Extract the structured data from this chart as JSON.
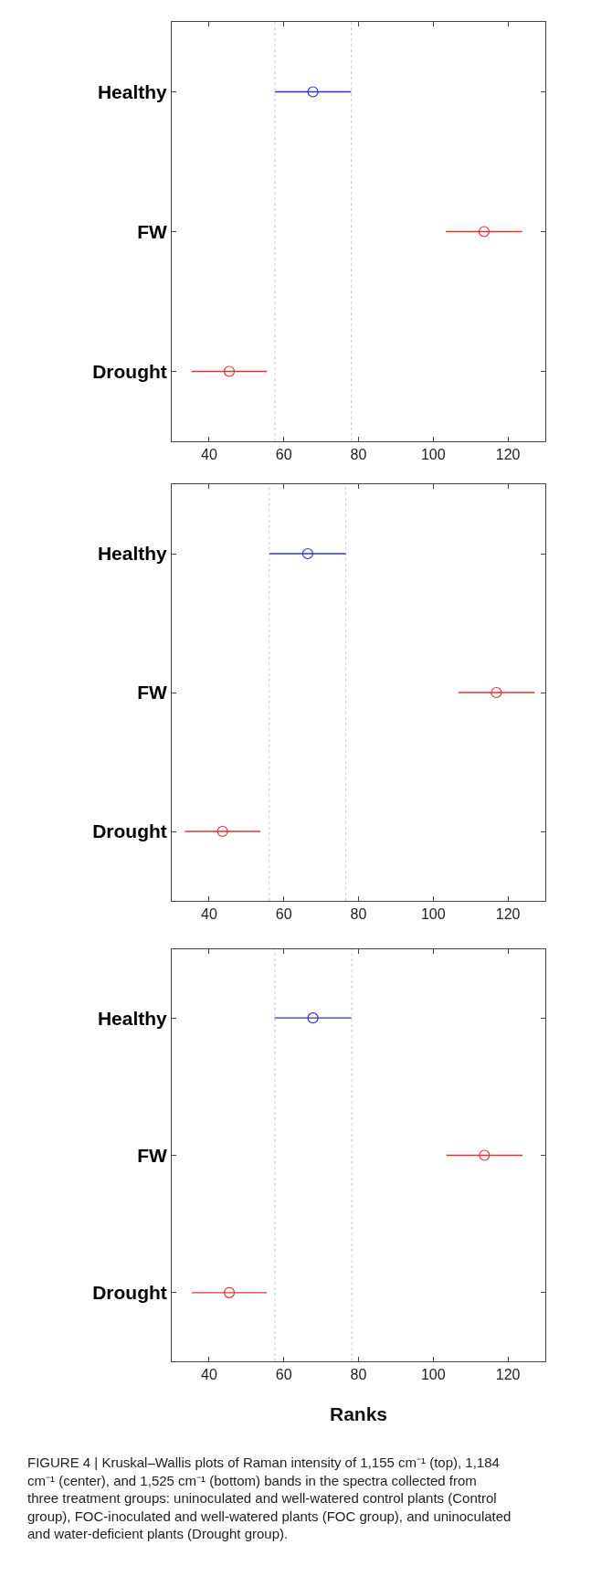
{
  "chart_data": [
    {
      "type": "scatter",
      "orientation": "horizontal",
      "categories": [
        "Healthy",
        "FW",
        "Drought"
      ],
      "marker": "circle",
      "grid": false,
      "series": [
        {
          "color": "#3333cc",
          "values": [
            67.8,
            null,
            null
          ],
          "errors": [
            10.2,
            null,
            null
          ]
        },
        {
          "color": "#dd3333",
          "values": [
            null,
            113.6,
            45.4
          ],
          "errors": [
            null,
            10.2,
            10.1
          ]
        }
      ],
      "xlim": [
        30,
        130
      ],
      "xticks": [
        40,
        60,
        80,
        100,
        120
      ],
      "ref_lines": [
        {
          "axis": "x",
          "value": 57.6,
          "color": "#cccccc",
          "line_style": "dotted"
        },
        {
          "axis": "x",
          "value": 78.1,
          "color": "#cccccc",
          "line_style": "dotted"
        }
      ]
    },
    {
      "type": "scatter",
      "orientation": "horizontal",
      "categories": [
        "Healthy",
        "FW",
        "Drought"
      ],
      "marker": "circle",
      "grid": false,
      "series": [
        {
          "color": "#3333cc",
          "values": [
            66.4,
            null,
            null
          ],
          "errors": [
            10.2,
            null,
            null
          ]
        },
        {
          "color": "#dd3333",
          "values": [
            null,
            116.9,
            43.6
          ],
          "errors": [
            null,
            10.2,
            10.1
          ]
        }
      ],
      "xlim": [
        30,
        130
      ],
      "xticks": [
        40,
        60,
        80,
        100,
        120
      ],
      "ref_lines": [
        {
          "axis": "x",
          "value": 56.1,
          "color": "#cccccc",
          "line_style": "dotted"
        },
        {
          "axis": "x",
          "value": 76.6,
          "color": "#cccccc",
          "line_style": "dotted"
        }
      ]
    },
    {
      "type": "scatter",
      "orientation": "horizontal",
      "categories": [
        "Healthy",
        "FW",
        "Drought"
      ],
      "marker": "circle",
      "grid": false,
      "xlabel": "Ranks",
      "series": [
        {
          "color": "#3333cc",
          "values": [
            67.8,
            null,
            null
          ],
          "errors": [
            10.3,
            null,
            null
          ]
        },
        {
          "color": "#dd3333",
          "values": [
            null,
            113.7,
            45.4
          ],
          "errors": [
            null,
            10.2,
            10.0
          ]
        }
      ],
      "xlim": [
        30,
        130
      ],
      "xticks": [
        40,
        60,
        80,
        100,
        120
      ],
      "ref_lines": [
        {
          "axis": "x",
          "value": 57.6,
          "color": "#cccccc",
          "line_style": "dotted"
        },
        {
          "axis": "x",
          "value": 78.2,
          "color": "#cccccc",
          "line_style": "dotted"
        }
      ],
      "annotations": [
        "FIGURE 4 | Kruskal–Wallis plots of Raman intensity of 1,155 cm⁻¹ (top), 1,184 cm⁻¹ (center), and 1,525 cm⁻¹ (bottom) bands in the spectra collected from three treatment groups: uninoculated and well-watered control plants (Control group), FOC-inoculated and well-watered plants (FOC group), and uninoculated and water-deficient plants (Drought group)."
      ]
    }
  ]
}
